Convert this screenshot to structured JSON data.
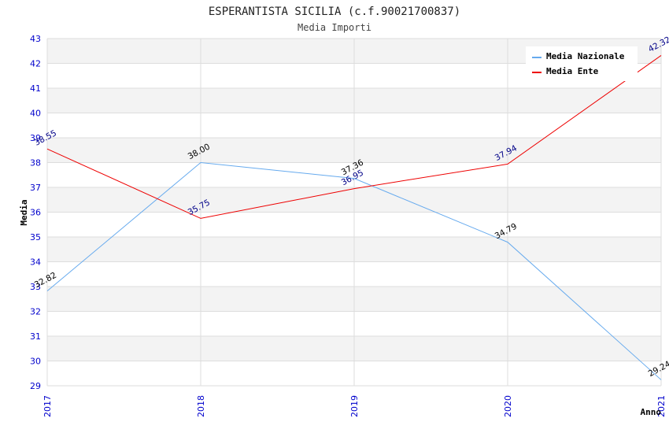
{
  "chart_data": {
    "type": "line",
    "title": "ESPERANTISTA SICILIA (c.f.90021700837)",
    "subtitle": "Media Importi",
    "xlabel": "Anno",
    "ylabel": "Media",
    "x": [
      "2017",
      "2018",
      "2019",
      "2020",
      "2021"
    ],
    "ylim": [
      29,
      43
    ],
    "yticks": [
      29,
      30,
      31,
      32,
      33,
      34,
      35,
      36,
      37,
      38,
      39,
      40,
      41,
      42,
      43
    ],
    "grid": true,
    "legend_position": "top-right",
    "series": [
      {
        "name": "Media Nazionale",
        "color": "#66aaee",
        "label_color": "#000000",
        "values": [
          32.82,
          38.0,
          37.36,
          34.79,
          29.24
        ],
        "labels": [
          "32.82",
          "38.00",
          "37.36",
          "34.79",
          "29.24"
        ]
      },
      {
        "name": "Media Ente",
        "color": "#ee0000",
        "label_color": "#000088",
        "values": [
          38.55,
          35.75,
          36.95,
          37.94,
          42.32
        ],
        "labels": [
          "38.55",
          "35.75",
          "36.95",
          "37.94",
          "42.32"
        ]
      }
    ]
  }
}
